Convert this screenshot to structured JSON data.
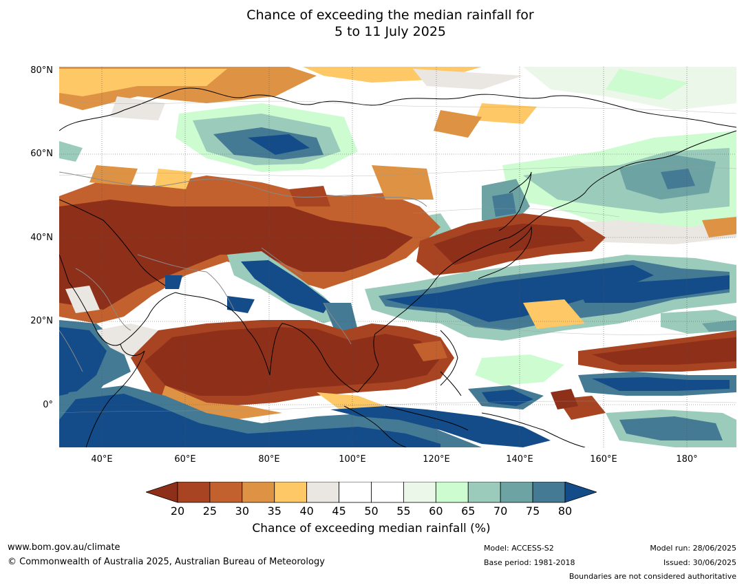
{
  "header": {
    "title_line1": "Chance of exceeding the median rainfall for",
    "title_line2": "5 to 11 July 2025"
  },
  "map": {
    "lat_labels": [
      "80°N",
      "60°N",
      "40°N",
      "20°N",
      "0°"
    ],
    "lon_labels": [
      "40°E",
      "60°E",
      "80°E",
      "100°E",
      "120°E",
      "140°E",
      "160°E",
      "180°"
    ]
  },
  "colorbar": {
    "ticks": [
      "20",
      "25",
      "30",
      "35",
      "40",
      "45",
      "50",
      "55",
      "60",
      "65",
      "70",
      "75",
      "80"
    ],
    "colors": [
      "#8e2f1a",
      "#a84422",
      "#c2602e",
      "#de9244",
      "#fec866",
      "#eae7e2",
      "#ffffff",
      "#ffffff",
      "#ebf7e8",
      "#ccfcd0",
      "#9bcbbb",
      "#6ea3a4",
      "#447a94",
      "#134c89"
    ],
    "label": "Chance of exceeding median rainfall (%)"
  },
  "footer": {
    "website": "www.bom.gov.au/climate",
    "copyright": "© Commonwealth of Australia 2025, Australian Bureau of Meteorology",
    "model": "Model: ACCESS-S2",
    "base_period": "Base period: 1981-2018",
    "model_run": "Model run: 28/06/2025",
    "issued": "Issued: 30/06/2025",
    "disclaimer": "Boundaries are not considered authoritative"
  }
}
